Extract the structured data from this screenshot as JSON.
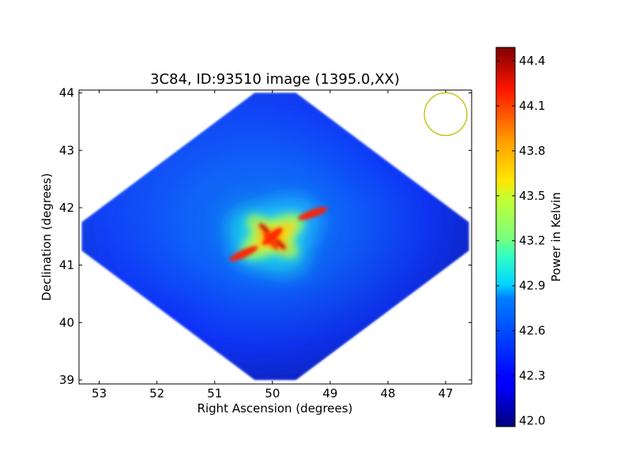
{
  "chart_data": {
    "type": "heatmap",
    "title": "3C84, ID:93510 image (1395.0,XX)",
    "xlabel": "Right Ascension (degrees)",
    "ylabel": "Declination (degrees)",
    "colorbar_label": "Power in Kelvin",
    "xlim": [
      53.35,
      46.55
    ],
    "ylim": [
      38.93,
      44.05
    ],
    "x_ticks": [
      53,
      52,
      51,
      50,
      49,
      48,
      47
    ],
    "y_ticks": [
      39,
      40,
      41,
      42,
      43,
      44
    ],
    "colorbar_range": [
      41.96,
      44.49
    ],
    "colorbar_ticks": [
      "42.0",
      "42.3",
      "42.6",
      "42.9",
      "43.2",
      "43.5",
      "43.8",
      "44.1",
      "44.4"
    ],
    "colormap": "jet",
    "footprint": {
      "shape": "diamond",
      "center": {
        "ra": 49.95,
        "dec": 41.5
      },
      "ra_span": [
        53.3,
        46.6
      ],
      "dec_span": [
        39.0,
        44.0
      ]
    },
    "features": [
      {
        "name": "central-cross",
        "ra": 50.0,
        "dec": 41.5,
        "level": 44.3
      },
      {
        "name": "upper-right-arm",
        "ra": 49.3,
        "dec": 41.9,
        "level": 44.2
      },
      {
        "name": "lower-left-arm",
        "ra": 50.5,
        "dec": 41.2,
        "level": 44.1
      }
    ],
    "beam": {
      "ra": 47.0,
      "dec": 43.63,
      "color": "#bfbf00"
    },
    "grid": false,
    "colorbar_placement": "right"
  }
}
